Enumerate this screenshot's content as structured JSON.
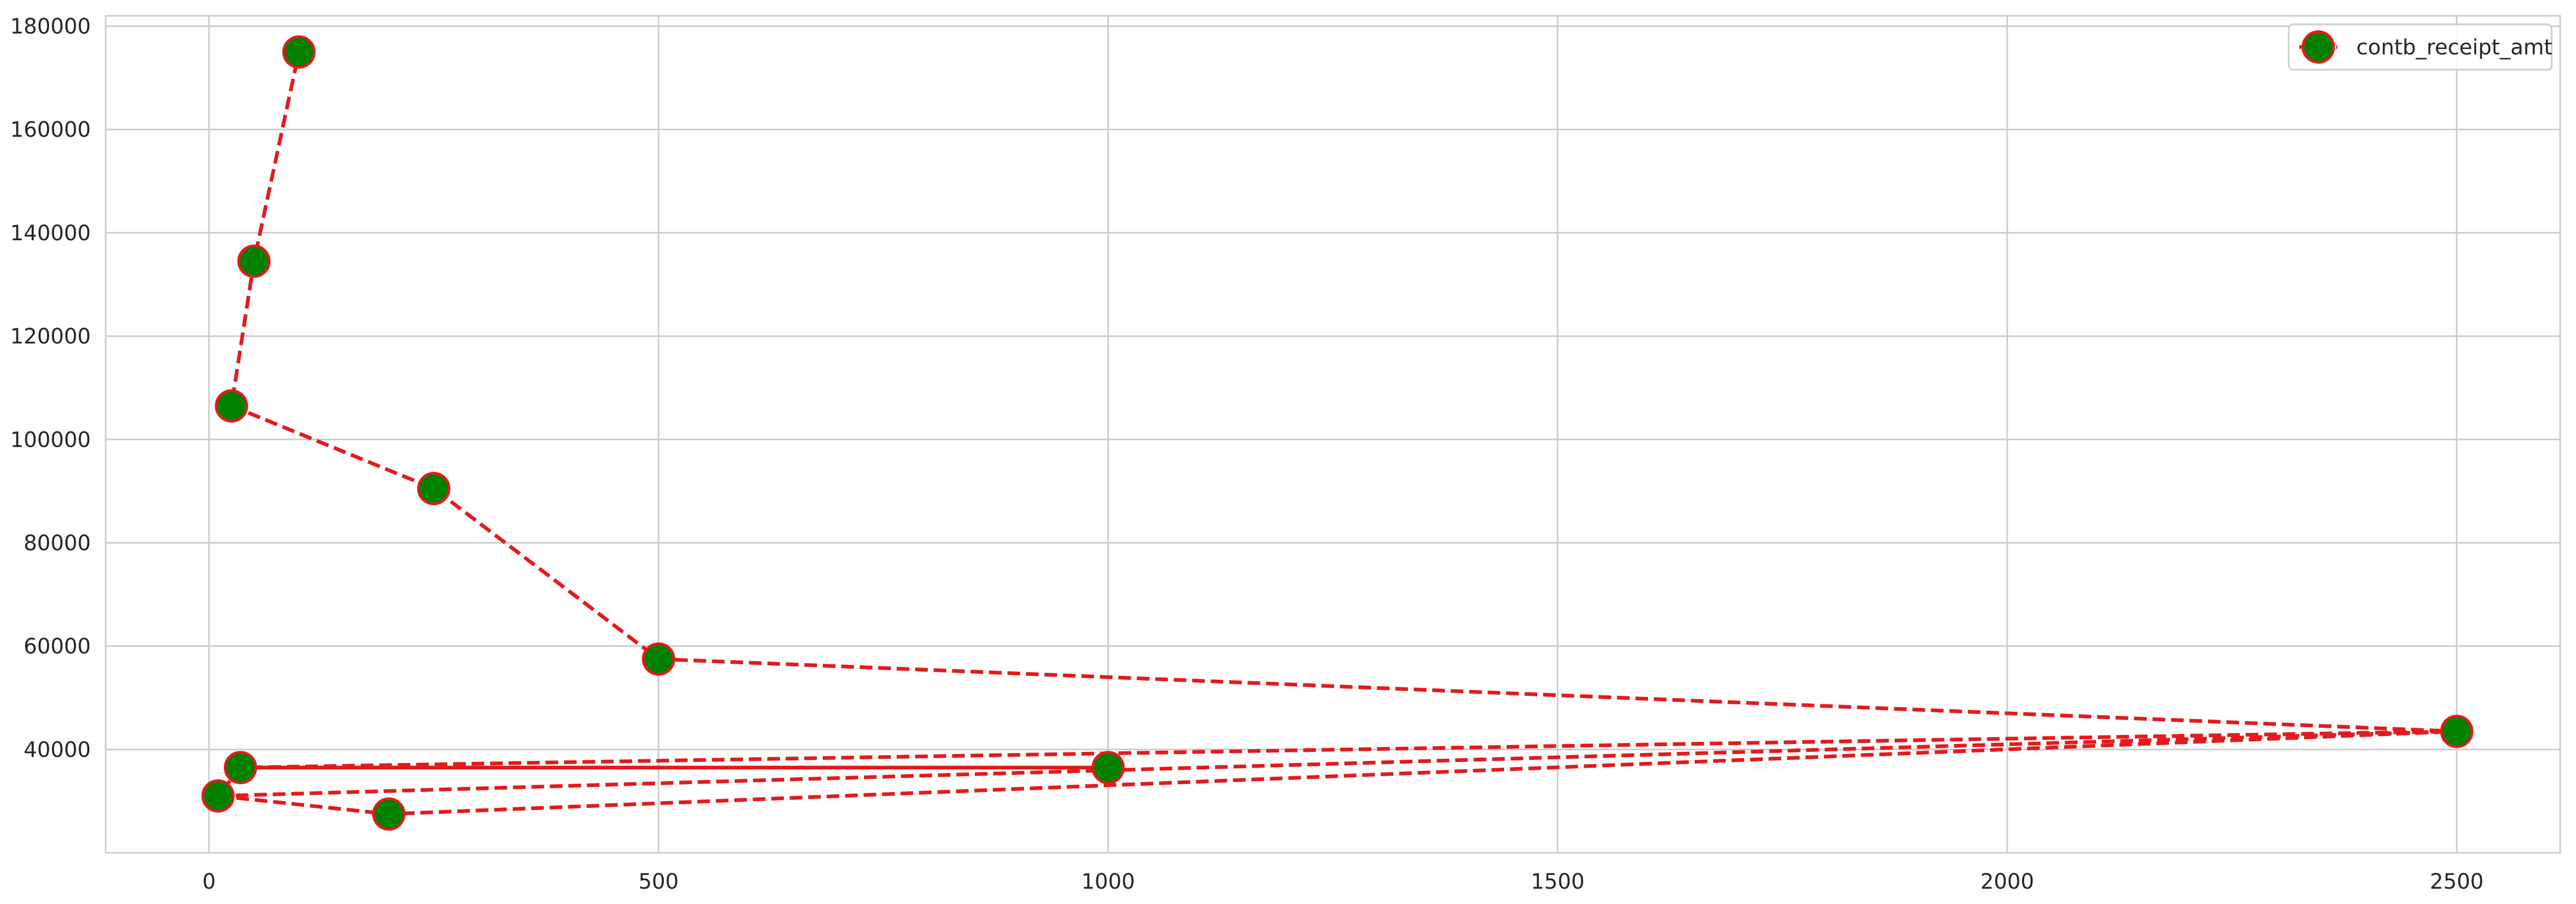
{
  "chart_data": {
    "type": "line",
    "title": "",
    "xlabel": "",
    "ylabel": "",
    "xlim": [
      -115,
      2615
    ],
    "ylim": [
      20000,
      182000
    ],
    "x_ticks": [
      0,
      500,
      1000,
      1500,
      2000,
      2500
    ],
    "y_ticks": [
      40000,
      60000,
      80000,
      100000,
      120000,
      140000,
      160000,
      180000
    ],
    "grid": true,
    "legend_position": "top-right",
    "series": [
      {
        "name": "contb_receipt_amt",
        "line_color": "#e41a1c",
        "line_style": "dashed",
        "marker": "circle",
        "marker_face_color": "#008000",
        "marker_edge_color": "#e41a1c",
        "points": [
          {
            "x": 10,
            "y": 31000
          },
          {
            "x": 200,
            "y": 27500
          },
          {
            "x": 2500,
            "y": 43500
          },
          {
            "x": 35,
            "y": 36500
          },
          {
            "x": 1000,
            "y": 36500
          },
          {
            "x": 35,
            "y": 36500
          },
          {
            "x": 10,
            "y": 31000
          },
          {
            "x": 2500,
            "y": 43500
          },
          {
            "x": 500,
            "y": 57500
          },
          {
            "x": 250,
            "y": 90500
          },
          {
            "x": 25,
            "y": 106500
          },
          {
            "x": 50,
            "y": 134500
          },
          {
            "x": 100,
            "y": 175000
          }
        ]
      }
    ]
  }
}
